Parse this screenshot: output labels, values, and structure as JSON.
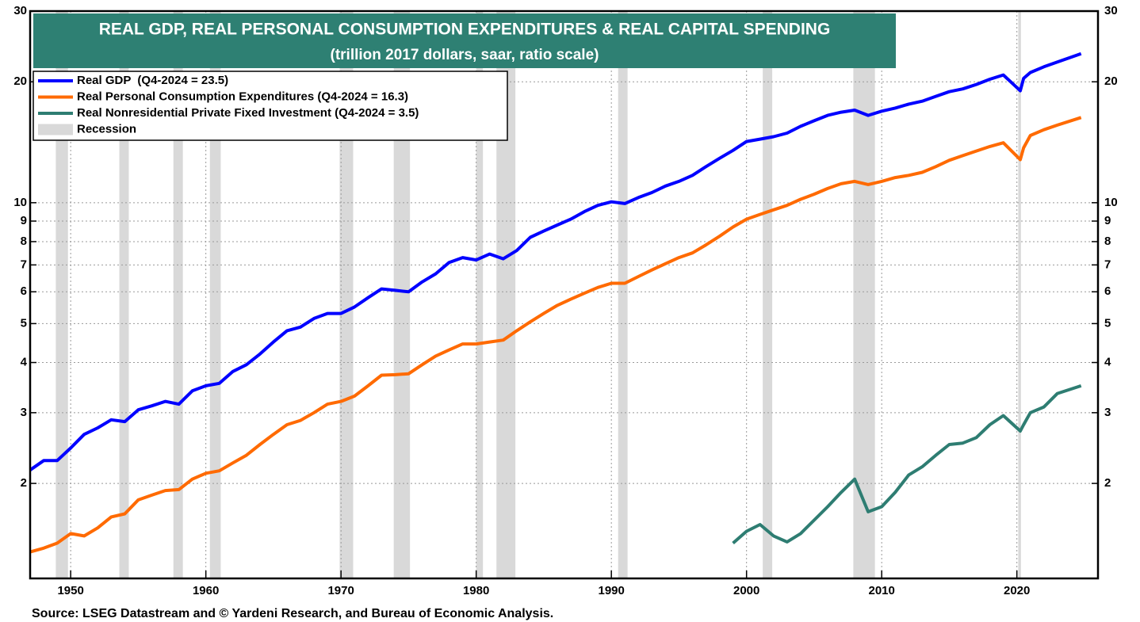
{
  "chart_data": {
    "type": "line",
    "title": "REAL GDP, REAL PERSONAL CONSUMPTION EXPENDITURES & REAL CAPITAL SPENDING",
    "subtitle": "(trillion 2017 dollars, saar, ratio scale)",
    "source": "Source: LSEG Datastream and © Yardeni Research, and Bureau of Economic Analysis.",
    "log_scale": true,
    "grid": true,
    "legend": "upper left",
    "xlim": [
      1947,
      2026
    ],
    "xticks": [
      1950,
      1960,
      1970,
      1980,
      1990,
      2000,
      2010,
      2020
    ],
    "ylim": [
      1.16,
      30
    ],
    "yticks": [
      2,
      3,
      4,
      5,
      6,
      7,
      8,
      9,
      10,
      20,
      30
    ],
    "x": [
      1947,
      1948,
      1949,
      1950,
      1951,
      1952,
      1953,
      1954,
      1955,
      1956,
      1957,
      1958,
      1959,
      1960,
      1961,
      1962,
      1963,
      1964,
      1965,
      1966,
      1967,
      1968,
      1969,
      1970,
      1971,
      1972,
      1973,
      1974,
      1975,
      1976,
      1977,
      1978,
      1979,
      1980,
      1981,
      1982,
      1983,
      1984,
      1985,
      1986,
      1987,
      1988,
      1989,
      1990,
      1991,
      1992,
      1993,
      1994,
      1995,
      1996,
      1997,
      1998,
      1999,
      2000,
      2001,
      2002,
      2003,
      2004,
      2005,
      2006,
      2007,
      2008,
      2009,
      2010,
      2011,
      2012,
      2013,
      2014,
      2015,
      2016,
      2017,
      2018,
      2019,
      2020.25,
      2020.5,
      2021,
      2022,
      2023,
      2024.75
    ],
    "series": [
      {
        "name": "Real GDP  (Q4-2024 = 23.5)",
        "color": "#0000ff",
        "values": [
          2.16,
          2.28,
          2.28,
          2.45,
          2.65,
          2.75,
          2.88,
          2.85,
          3.05,
          3.12,
          3.2,
          3.15,
          3.4,
          3.5,
          3.55,
          3.8,
          3.95,
          4.2,
          4.5,
          4.8,
          4.9,
          5.15,
          5.3,
          5.3,
          5.5,
          5.8,
          6.1,
          6.05,
          6.0,
          6.35,
          6.65,
          7.1,
          7.3,
          7.2,
          7.45,
          7.25,
          7.6,
          8.2,
          8.5,
          8.8,
          9.1,
          9.5,
          9.85,
          10.05,
          9.95,
          10.3,
          10.6,
          11.0,
          11.3,
          11.7,
          12.3,
          12.9,
          13.5,
          14.2,
          14.4,
          14.6,
          14.9,
          15.5,
          16.0,
          16.5,
          16.8,
          17.0,
          16.5,
          16.9,
          17.2,
          17.6,
          17.9,
          18.4,
          18.9,
          19.2,
          19.7,
          20.3,
          20.8,
          19.0,
          20.4,
          21.1,
          21.8,
          22.4,
          23.5
        ]
      },
      {
        "name": "Real Personal Consumption Expenditures (Q4-2024 = 16.3)",
        "color": "#ff6a00",
        "values": [
          1.35,
          1.38,
          1.42,
          1.5,
          1.48,
          1.55,
          1.65,
          1.68,
          1.82,
          1.87,
          1.92,
          1.93,
          2.05,
          2.12,
          2.15,
          2.25,
          2.35,
          2.5,
          2.65,
          2.8,
          2.87,
          3.0,
          3.15,
          3.2,
          3.3,
          3.5,
          3.72,
          3.73,
          3.75,
          3.95,
          4.15,
          4.3,
          4.45,
          4.45,
          4.5,
          4.55,
          4.8,
          5.05,
          5.3,
          5.55,
          5.75,
          5.95,
          6.15,
          6.3,
          6.3,
          6.55,
          6.8,
          7.05,
          7.3,
          7.5,
          7.85,
          8.25,
          8.7,
          9.1,
          9.35,
          9.6,
          9.85,
          10.2,
          10.5,
          10.85,
          11.15,
          11.3,
          11.1,
          11.3,
          11.55,
          11.7,
          11.9,
          12.3,
          12.75,
          13.1,
          13.45,
          13.8,
          14.1,
          12.8,
          13.7,
          14.7,
          15.2,
          15.6,
          16.3
        ]
      },
      {
        "name": "Real Nonresidential Private Fixed Investment (Q4-2024 = 3.5)",
        "color": "#2e7d72",
        "values": [
          null,
          null,
          null,
          null,
          null,
          null,
          null,
          null,
          null,
          null,
          null,
          null,
          null,
          null,
          null,
          null,
          null,
          null,
          null,
          null,
          null,
          null,
          null,
          null,
          null,
          null,
          null,
          null,
          null,
          null,
          null,
          null,
          null,
          null,
          null,
          null,
          null,
          null,
          null,
          null,
          null,
          null,
          null,
          null,
          null,
          null,
          null,
          null,
          null,
          null,
          null,
          null,
          1.42,
          1.52,
          1.58,
          1.48,
          1.43,
          1.5,
          1.62,
          1.75,
          1.9,
          2.05,
          1.7,
          1.75,
          1.9,
          2.1,
          2.2,
          2.35,
          2.5,
          2.52,
          2.6,
          2.8,
          2.95,
          2.7,
          2.8,
          3.0,
          3.1,
          3.35,
          3.5
        ]
      }
    ],
    "recession_label": "Recession",
    "recession_color": "#d9d9d9",
    "recessions": [
      [
        1948.9,
        1949.8
      ],
      [
        1953.6,
        1954.3
      ],
      [
        1957.6,
        1958.3
      ],
      [
        1960.3,
        1961.1
      ],
      [
        1969.9,
        1970.9
      ],
      [
        1973.9,
        1975.1
      ],
      [
        1980.0,
        1980.5
      ],
      [
        1981.5,
        1982.9
      ],
      [
        1990.5,
        1991.2
      ],
      [
        2001.2,
        2001.9
      ],
      [
        2007.9,
        2009.5
      ],
      [
        2020.1,
        2020.3
      ]
    ]
  }
}
